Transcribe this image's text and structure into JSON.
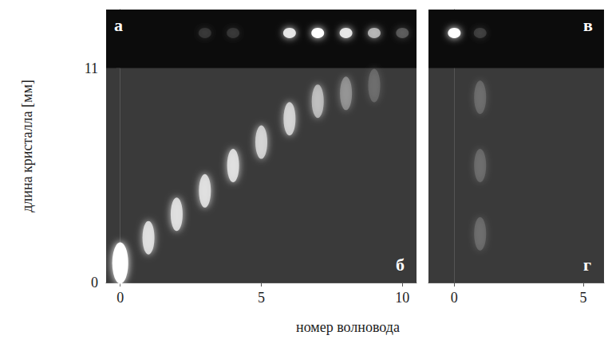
{
  "xlabel": "номер волновода",
  "ylabel": "длина кристалла [мм]",
  "chart_data": [
    {
      "type": "scatter",
      "panels": {
        "top": "а",
        "bottom": "б"
      },
      "xlim": [
        -0.5,
        10.5
      ],
      "xticks": [
        0,
        5,
        10
      ],
      "ylim": [
        0,
        14
      ],
      "yticks": [
        0,
        11
      ],
      "series": [
        {
          "type": "scatter",
          "x": [
            0,
            1,
            2,
            3,
            4,
            5,
            6,
            7,
            8,
            9
          ],
          "y": [
            1.0,
            2.3,
            3.5,
            4.7,
            6.0,
            7.2,
            8.4,
            9.3,
            9.7,
            10.1
          ],
          "intensity": [
            1.0,
            0.85,
            0.85,
            0.85,
            0.85,
            0.8,
            0.8,
            0.7,
            0.5,
            0.3
          ]
        },
        {
          "type": "scatter",
          "x": [
            3,
            4,
            6,
            7,
            8,
            9,
            10
          ],
          "y": [
            12.8,
            12.8,
            12.8,
            12.8,
            12.8,
            12.8,
            12.8
          ],
          "intensity": [
            0.1,
            0.1,
            0.9,
            1.0,
            0.9,
            0.7,
            0.3
          ]
        }
      ]
    },
    {
      "type": "scatter",
      "panels": {
        "top": "в",
        "bottom": "г"
      },
      "xlim": [
        -1,
        5.8
      ],
      "xticks": [
        0,
        5
      ],
      "ylim": [
        0,
        14
      ],
      "yticks": [
        0,
        11
      ],
      "tick_labels": "x",
      "series": [
        {
          "type": "line",
          "x": [
            0,
            0
          ],
          "y": [
            0,
            11
          ]
        },
        {
          "type": "scatter",
          "x": [
            1,
            1,
            1
          ],
          "y": [
            2.5,
            6.0,
            9.5
          ],
          "intensity": [
            0.3,
            0.3,
            0.3
          ]
        },
        {
          "type": "scatter",
          "x": [
            0,
            1
          ],
          "y": [
            12.8,
            12.8
          ],
          "intensity": [
            1.0,
            0.15
          ]
        }
      ]
    }
  ]
}
